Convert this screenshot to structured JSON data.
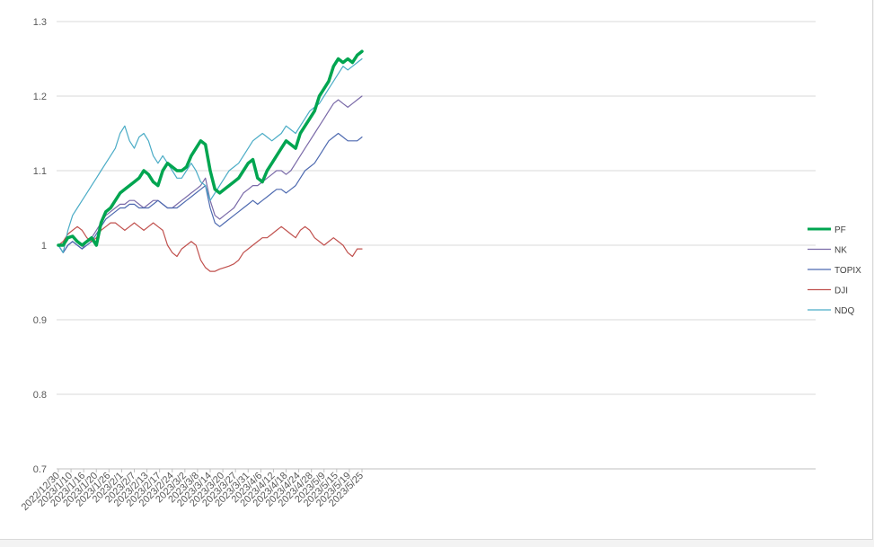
{
  "chart_data": {
    "type": "line",
    "title": "",
    "xlabel": "",
    "ylabel": "",
    "ylim": [
      0.7,
      1.3
    ],
    "yticks": [
      "0.7",
      "0.8",
      "0.9",
      "1",
      "1.1",
      "1.2",
      "1.3"
    ],
    "grid": "horizontal",
    "legend_position": "right",
    "x_tick_labels": [
      "2022/12/30",
      "2023/1/10",
      "2023/1/16",
      "2023/1/20",
      "2023/1/26",
      "2023/2/1",
      "2023/2/7",
      "2023/2/13",
      "2023/2/17",
      "2023/2/24",
      "2023/3/2",
      "2023/3/8",
      "2023/3/14",
      "2023/3/20",
      "2023/3/27",
      "2023/3/31",
      "2023/4/6",
      "2023/4/12",
      "2023/4/18",
      "2023/4/24",
      "2023/4/28",
      "2023/5/9",
      "2023/5/15",
      "2023/5/19",
      "2023/5/25"
    ],
    "series": [
      {
        "name": "PF",
        "color": "#00a550",
        "width": 3.5,
        "values": [
          1.0,
          1.0,
          1.01,
          1.012,
          1.005,
          1.0,
          1.005,
          1.01,
          1.0,
          1.03,
          1.045,
          1.05,
          1.06,
          1.07,
          1.075,
          1.08,
          1.085,
          1.09,
          1.1,
          1.095,
          1.085,
          1.08,
          1.1,
          1.11,
          1.105,
          1.1,
          1.1,
          1.105,
          1.12,
          1.13,
          1.14,
          1.135,
          1.1,
          1.075,
          1.07,
          1.075,
          1.08,
          1.085,
          1.09,
          1.1,
          1.11,
          1.115,
          1.09,
          1.085,
          1.1,
          1.11,
          1.12,
          1.13,
          1.14,
          1.135,
          1.13,
          1.15,
          1.16,
          1.17,
          1.18,
          1.2,
          1.21,
          1.22,
          1.24,
          1.25,
          1.245,
          1.25,
          1.245,
          1.255,
          1.26
        ]
      },
      {
        "name": "NK",
        "color": "#7a6aa8",
        "width": 1.2,
        "values": [
          1.0,
          0.99,
          1.0,
          1.005,
          1.0,
          0.995,
          1.005,
          1.01,
          1.02,
          1.03,
          1.04,
          1.045,
          1.05,
          1.055,
          1.055,
          1.06,
          1.06,
          1.055,
          1.05,
          1.055,
          1.06,
          1.06,
          1.055,
          1.05,
          1.05,
          1.055,
          1.06,
          1.065,
          1.07,
          1.075,
          1.08,
          1.09,
          1.06,
          1.04,
          1.035,
          1.04,
          1.045,
          1.05,
          1.06,
          1.07,
          1.075,
          1.08,
          1.08,
          1.085,
          1.09,
          1.095,
          1.1,
          1.1,
          1.095,
          1.1,
          1.11,
          1.12,
          1.13,
          1.14,
          1.15,
          1.16,
          1.17,
          1.18,
          1.19,
          1.195,
          1.19,
          1.185,
          1.19,
          1.195,
          1.2
        ]
      },
      {
        "name": "TOPIX",
        "color": "#4e6ab0",
        "width": 1.2,
        "values": [
          1.0,
          0.99,
          1.0,
          1.005,
          1.0,
          0.995,
          1.0,
          1.005,
          1.015,
          1.025,
          1.035,
          1.04,
          1.045,
          1.05,
          1.05,
          1.055,
          1.055,
          1.05,
          1.05,
          1.05,
          1.055,
          1.06,
          1.055,
          1.05,
          1.05,
          1.05,
          1.055,
          1.06,
          1.065,
          1.07,
          1.075,
          1.08,
          1.05,
          1.03,
          1.025,
          1.03,
          1.035,
          1.04,
          1.045,
          1.05,
          1.055,
          1.06,
          1.055,
          1.06,
          1.065,
          1.07,
          1.075,
          1.075,
          1.07,
          1.075,
          1.08,
          1.09,
          1.1,
          1.105,
          1.11,
          1.12,
          1.13,
          1.14,
          1.145,
          1.15,
          1.145,
          1.14,
          1.14,
          1.14,
          1.145
        ]
      },
      {
        "name": "DJI",
        "color": "#c0504d",
        "width": 1.2,
        "values": [
          1.0,
          1.005,
          1.015,
          1.02,
          1.025,
          1.02,
          1.01,
          1.005,
          1.01,
          1.02,
          1.025,
          1.03,
          1.03,
          1.025,
          1.02,
          1.025,
          1.03,
          1.025,
          1.02,
          1.025,
          1.03,
          1.025,
          1.02,
          1.0,
          0.99,
          0.985,
          0.995,
          1.0,
          1.005,
          1.0,
          0.98,
          0.97,
          0.965,
          0.965,
          0.968,
          0.97,
          0.972,
          0.975,
          0.98,
          0.99,
          0.995,
          1.0,
          1.005,
          1.01,
          1.01,
          1.015,
          1.02,
          1.025,
          1.02,
          1.015,
          1.01,
          1.02,
          1.025,
          1.02,
          1.01,
          1.005,
          1.0,
          1.005,
          1.01,
          1.005,
          1.0,
          0.99,
          0.985,
          0.995,
          0.995
        ]
      },
      {
        "name": "NDQ",
        "color": "#4bacc6",
        "width": 1.2,
        "values": [
          1.0,
          0.99,
          1.02,
          1.04,
          1.05,
          1.06,
          1.07,
          1.08,
          1.09,
          1.1,
          1.11,
          1.12,
          1.13,
          1.15,
          1.16,
          1.14,
          1.13,
          1.145,
          1.15,
          1.14,
          1.12,
          1.11,
          1.12,
          1.11,
          1.1,
          1.09,
          1.09,
          1.1,
          1.11,
          1.1,
          1.085,
          1.08,
          1.06,
          1.07,
          1.08,
          1.09,
          1.1,
          1.105,
          1.11,
          1.12,
          1.13,
          1.14,
          1.145,
          1.15,
          1.145,
          1.14,
          1.145,
          1.15,
          1.16,
          1.155,
          1.15,
          1.16,
          1.17,
          1.18,
          1.185,
          1.19,
          1.2,
          1.21,
          1.22,
          1.23,
          1.24,
          1.235,
          1.24,
          1.245,
          1.25
        ]
      }
    ]
  }
}
